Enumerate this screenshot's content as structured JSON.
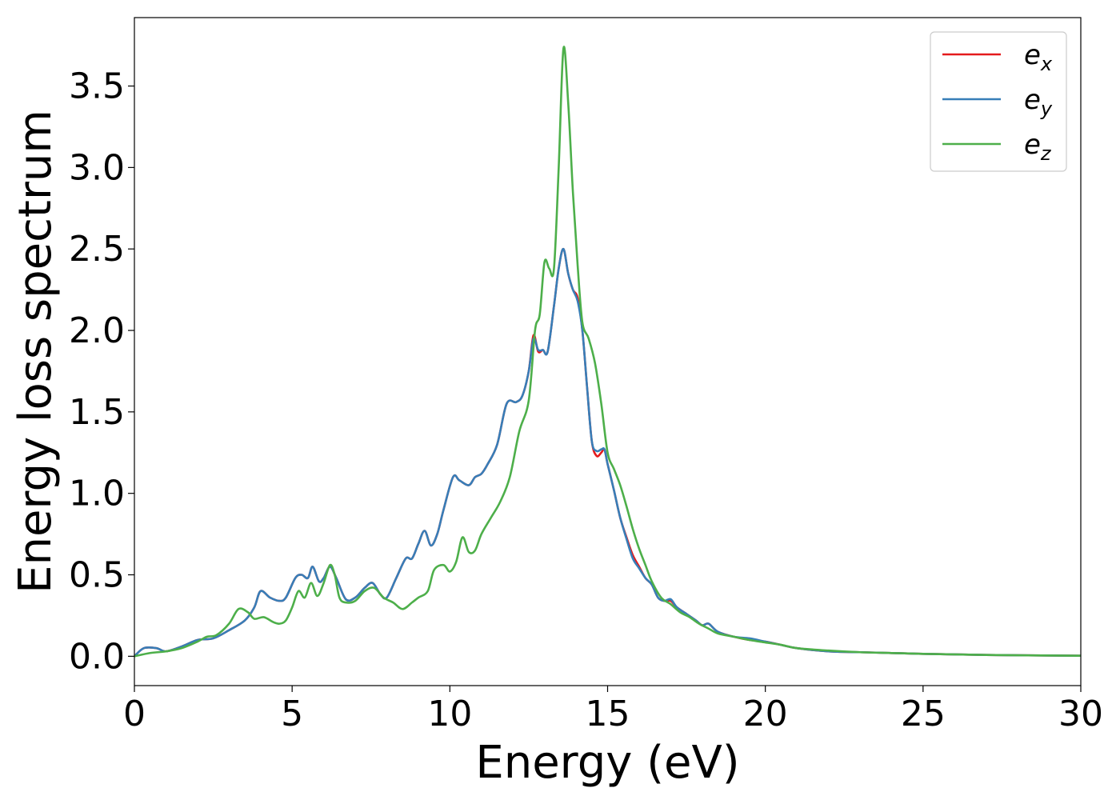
{
  "chart_data": {
    "type": "line",
    "xlabel": "Energy (eV)",
    "ylabel": "Energy loss spectrum",
    "xlim": [
      0,
      30
    ],
    "ylim": [
      -0.18,
      3.92
    ],
    "xticks": [
      0,
      5,
      10,
      15,
      20,
      25,
      30
    ],
    "xtick_labels": [
      "0",
      "5",
      "10",
      "15",
      "20",
      "25",
      "30"
    ],
    "yticks": [
      0.0,
      0.5,
      1.0,
      1.5,
      2.0,
      2.5,
      3.0,
      3.5
    ],
    "ytick_labels": [
      "0.0",
      "0.5",
      "1.0",
      "1.5",
      "2.0",
      "2.5",
      "3.0",
      "3.5"
    ],
    "grid": false,
    "legend_position": "top-right",
    "series": [
      {
        "name": "e_x",
        "label_base": "e",
        "label_sub": "x",
        "color": "#e41a1c",
        "x": [
          0,
          0.3,
          0.7,
          1.0,
          1.5,
          2.0,
          2.5,
          3.0,
          3.5,
          3.8,
          4.0,
          4.3,
          4.6,
          4.8,
          5.1,
          5.3,
          5.5,
          5.65,
          5.85,
          6.0,
          6.2,
          6.4,
          6.7,
          7.0,
          7.3,
          7.55,
          7.8,
          8.0,
          8.3,
          8.6,
          8.8,
          9.0,
          9.2,
          9.4,
          9.6,
          9.8,
          10.1,
          10.3,
          10.6,
          10.8,
          11.0,
          11.2,
          11.5,
          11.8,
          12.1,
          12.3,
          12.5,
          12.65,
          12.8,
          12.95,
          13.1,
          13.3,
          13.45,
          13.6,
          13.75,
          13.9,
          14.05,
          14.2,
          14.35,
          14.5,
          14.65,
          14.8,
          14.9,
          15.0,
          15.2,
          15.4,
          15.6,
          15.8,
          16.0,
          16.2,
          16.4,
          16.6,
          16.8,
          17.0,
          17.2,
          17.5,
          17.8,
          18.0,
          18.2,
          18.5,
          19.0,
          19.5,
          20.0,
          20.5,
          21.0,
          22.0,
          23.0,
          24.0,
          25.0,
          27.0,
          30.0
        ],
        "y": [
          0.0,
          0.05,
          0.05,
          0.03,
          0.06,
          0.1,
          0.11,
          0.16,
          0.22,
          0.3,
          0.4,
          0.36,
          0.34,
          0.36,
          0.48,
          0.5,
          0.48,
          0.55,
          0.46,
          0.48,
          0.55,
          0.48,
          0.35,
          0.36,
          0.42,
          0.45,
          0.38,
          0.36,
          0.48,
          0.6,
          0.6,
          0.69,
          0.77,
          0.68,
          0.75,
          0.9,
          1.1,
          1.08,
          1.05,
          1.1,
          1.12,
          1.18,
          1.3,
          1.55,
          1.56,
          1.6,
          1.75,
          1.97,
          1.87,
          1.88,
          1.87,
          2.15,
          2.38,
          2.5,
          2.35,
          2.25,
          2.2,
          2.0,
          1.65,
          1.32,
          1.23,
          1.25,
          1.27,
          1.18,
          1.02,
          0.85,
          0.73,
          0.62,
          0.55,
          0.48,
          0.44,
          0.36,
          0.34,
          0.34,
          0.3,
          0.26,
          0.22,
          0.19,
          0.2,
          0.15,
          0.12,
          0.1,
          0.09,
          0.07,
          0.05,
          0.03,
          0.025,
          0.02,
          0.015,
          0.008,
          0.003
        ]
      },
      {
        "name": "e_y",
        "label_base": "e",
        "label_sub": "y",
        "color": "#377eb8",
        "x": [
          0,
          0.3,
          0.7,
          1.0,
          1.5,
          2.0,
          2.5,
          3.0,
          3.5,
          3.8,
          4.0,
          4.3,
          4.6,
          4.8,
          5.1,
          5.3,
          5.5,
          5.65,
          5.85,
          6.0,
          6.2,
          6.4,
          6.7,
          7.0,
          7.3,
          7.55,
          7.8,
          8.0,
          8.3,
          8.6,
          8.8,
          9.0,
          9.2,
          9.4,
          9.6,
          9.8,
          10.1,
          10.3,
          10.6,
          10.8,
          11.0,
          11.2,
          11.5,
          11.8,
          12.1,
          12.3,
          12.5,
          12.65,
          12.8,
          12.95,
          13.1,
          13.3,
          13.45,
          13.6,
          13.75,
          13.9,
          14.05,
          14.2,
          14.35,
          14.5,
          14.65,
          14.8,
          14.9,
          15.0,
          15.2,
          15.4,
          15.6,
          15.8,
          16.0,
          16.2,
          16.4,
          16.6,
          16.8,
          17.0,
          17.2,
          17.5,
          17.8,
          18.0,
          18.2,
          18.5,
          19.0,
          19.5,
          20.0,
          20.5,
          21.0,
          22.0,
          23.0,
          24.0,
          25.0,
          27.0,
          30.0
        ],
        "y": [
          0.0,
          0.05,
          0.05,
          0.03,
          0.06,
          0.1,
          0.11,
          0.16,
          0.22,
          0.3,
          0.4,
          0.36,
          0.34,
          0.36,
          0.48,
          0.5,
          0.48,
          0.55,
          0.46,
          0.48,
          0.55,
          0.48,
          0.35,
          0.36,
          0.42,
          0.45,
          0.38,
          0.36,
          0.48,
          0.6,
          0.6,
          0.69,
          0.77,
          0.68,
          0.75,
          0.9,
          1.1,
          1.08,
          1.05,
          1.1,
          1.12,
          1.18,
          1.3,
          1.55,
          1.56,
          1.6,
          1.75,
          1.95,
          1.88,
          1.88,
          1.87,
          2.15,
          2.38,
          2.5,
          2.35,
          2.25,
          2.18,
          2.0,
          1.65,
          1.32,
          1.26,
          1.27,
          1.27,
          1.18,
          1.02,
          0.85,
          0.72,
          0.6,
          0.54,
          0.48,
          0.44,
          0.36,
          0.34,
          0.35,
          0.3,
          0.26,
          0.22,
          0.19,
          0.2,
          0.15,
          0.12,
          0.11,
          0.09,
          0.07,
          0.05,
          0.03,
          0.025,
          0.02,
          0.015,
          0.008,
          0.003
        ]
      },
      {
        "name": "e_z",
        "label_base": "e",
        "label_sub": "z",
        "color": "#4daf4a",
        "x": [
          0,
          0.5,
          1.0,
          1.5,
          2.0,
          2.3,
          2.6,
          3.0,
          3.3,
          3.6,
          3.8,
          4.1,
          4.4,
          4.6,
          4.8,
          5.0,
          5.2,
          5.4,
          5.6,
          5.8,
          6.0,
          6.2,
          6.35,
          6.5,
          6.7,
          7.0,
          7.3,
          7.6,
          7.9,
          8.2,
          8.5,
          8.8,
          9.0,
          9.3,
          9.5,
          9.8,
          10.0,
          10.2,
          10.4,
          10.6,
          10.8,
          11.0,
          11.3,
          11.6,
          11.9,
          12.2,
          12.5,
          12.7,
          12.85,
          13.0,
          13.15,
          13.3,
          13.45,
          13.6,
          13.75,
          13.9,
          14.05,
          14.2,
          14.4,
          14.6,
          14.8,
          15.0,
          15.2,
          15.4,
          15.6,
          15.8,
          16.0,
          16.2,
          16.4,
          16.7,
          17.0,
          17.3,
          17.6,
          17.9,
          18.2,
          18.5,
          19.0,
          19.5,
          20.0,
          20.5,
          21.0,
          22.0,
          23.0,
          24.0,
          25.0,
          27.0,
          30.0
        ],
        "y": [
          0.0,
          0.02,
          0.03,
          0.05,
          0.09,
          0.12,
          0.13,
          0.2,
          0.29,
          0.27,
          0.23,
          0.24,
          0.21,
          0.2,
          0.22,
          0.3,
          0.4,
          0.36,
          0.45,
          0.37,
          0.45,
          0.56,
          0.5,
          0.36,
          0.33,
          0.34,
          0.4,
          0.42,
          0.36,
          0.33,
          0.29,
          0.33,
          0.36,
          0.4,
          0.53,
          0.56,
          0.52,
          0.58,
          0.73,
          0.64,
          0.65,
          0.75,
          0.85,
          0.95,
          1.1,
          1.38,
          1.57,
          2.0,
          2.1,
          2.42,
          2.38,
          2.38,
          3.0,
          3.73,
          3.4,
          2.85,
          2.4,
          2.05,
          1.95,
          1.8,
          1.55,
          1.25,
          1.15,
          1.05,
          0.92,
          0.78,
          0.66,
          0.56,
          0.46,
          0.36,
          0.32,
          0.27,
          0.24,
          0.2,
          0.17,
          0.14,
          0.12,
          0.1,
          0.085,
          0.07,
          0.05,
          0.035,
          0.025,
          0.02,
          0.015,
          0.008,
          0.003
        ]
      }
    ]
  }
}
